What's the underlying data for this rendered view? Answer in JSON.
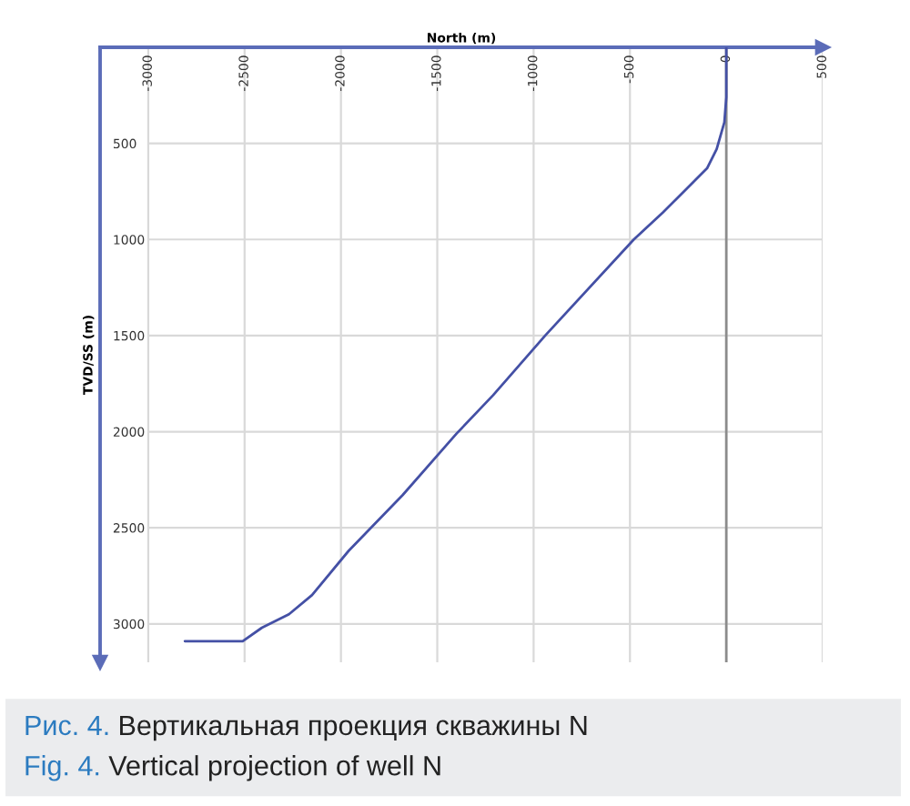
{
  "chart_data": {
    "type": "line",
    "xlabel": "North (m)",
    "ylabel": "TVD/SS (m)",
    "x": [
      0,
      0,
      -10,
      -50,
      -100,
      -200,
      -330,
      -480,
      -940,
      -1210,
      -1400,
      -1680,
      -1960,
      -2150,
      -2270,
      -2410,
      -2510,
      -2810
    ],
    "values": [
      0,
      260,
      390,
      530,
      630,
      730,
      860,
      1000,
      1500,
      1810,
      2010,
      2330,
      2620,
      2850,
      2950,
      3020,
      3090,
      3090
    ],
    "color": "#4450a5",
    "xlim": [
      -3250,
      500
    ],
    "ylim": [
      3200,
      0
    ],
    "xticks": [
      -3000,
      -2500,
      -2000,
      -1500,
      -1000,
      -500,
      0,
      500
    ],
    "yticks": [
      500,
      1000,
      1500,
      2000,
      2500,
      3000
    ],
    "grid": true,
    "ref_lines": [
      {
        "axis": "x",
        "value": 0,
        "color": "#8c8c8c"
      }
    ],
    "annotations": [
      "Рис. 4.",
      "Вертикальная проекция скважины N",
      "Fig. 4.",
      "Vertical projection of well N"
    ]
  }
}
